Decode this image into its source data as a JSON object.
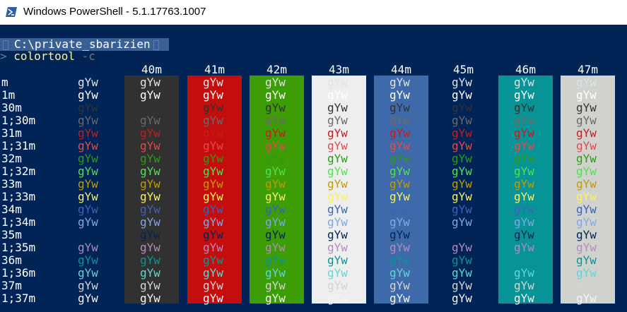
{
  "window": {
    "title": "Windows PowerShell - 5.1.17763.1007",
    "icon": "powershell-icon"
  },
  "prompt": {
    "path": "C:\\private_sbarizien"
  },
  "command": {
    "arrow": ">",
    "name": "colortool",
    "arg": "-c"
  },
  "columns": [
    {
      "header": "",
      "bg": null
    },
    {
      "header": "40m",
      "bg": "#313131"
    },
    {
      "header": "41m",
      "bg": "#c40e0e"
    },
    {
      "header": "42m",
      "bg": "#3c9d07"
    },
    {
      "header": "43m",
      "bg": "#eeeeee"
    },
    {
      "header": "44m",
      "bg": "#3f6aaa"
    },
    {
      "header": "45m",
      "bg": "#012456"
    },
    {
      "header": "46m",
      "bg": "#089496"
    },
    {
      "header": "47m",
      "bg": "#d0d2cd"
    }
  ],
  "sample_text": "gYw",
  "rows": [
    {
      "label": "m",
      "fg": "#dfe3e7"
    },
    {
      "label": "1m",
      "fg": "#ffffff"
    },
    {
      "label": "30m",
      "fg": "#323232"
    },
    {
      "label": "1;30m",
      "fg": "#6a6a6a"
    },
    {
      "label": "31m",
      "fg": "#c91b1b"
    },
    {
      "label": "1;31m",
      "fg": "#e74848"
    },
    {
      "label": "32m",
      "fg": "#2d9b12"
    },
    {
      "label": "1;32m",
      "fg": "#4fe34f"
    },
    {
      "label": "33m",
      "fg": "#c19c00"
    },
    {
      "label": "1;33m",
      "fg": "#f9f161"
    },
    {
      "label": "34m",
      "fg": "#3a64bb"
    },
    {
      "label": "1;34m",
      "fg": "#7ea9e6"
    },
    {
      "label": "35m",
      "fg": "#012456"
    },
    {
      "label": "1;35m",
      "fg": "#b58bbf"
    },
    {
      "label": "36m",
      "fg": "#0a9398"
    },
    {
      "label": "1;36m",
      "fg": "#61d6d6"
    },
    {
      "label": "37m",
      "fg": "#d4d4d4"
    },
    {
      "label": "1;37m",
      "fg": "#f4f4f4"
    }
  ]
}
